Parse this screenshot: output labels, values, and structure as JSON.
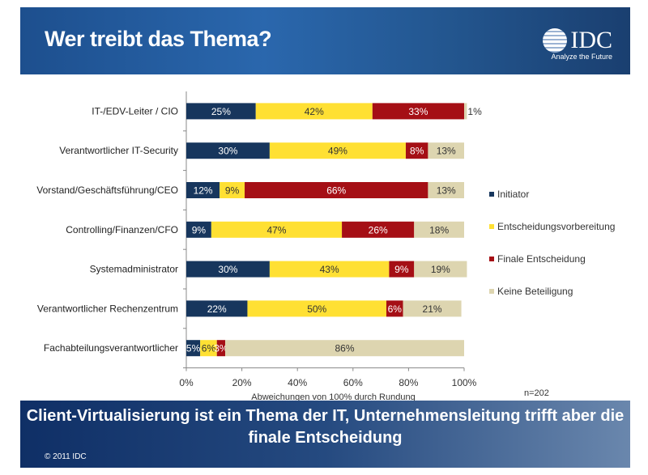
{
  "header": {
    "title": "Wer treibt das Thema?",
    "logo_text": "IDC",
    "logo_tagline": "Analyze the Future"
  },
  "chart_data": {
    "type": "bar",
    "orientation": "horizontal",
    "stacked": true,
    "categories": [
      "IT-/EDV-Leiter / CIO",
      "Verantwortlicher IT-Security",
      "Vorstand/Geschäftsführung/CEO",
      "Controlling/Finanzen/CFO",
      "Systemadministrator",
      "Verantwortlicher Rechenzentrum",
      "Fachabteilungsverantwortlicher"
    ],
    "series": [
      {
        "name": "Initiator",
        "color": "#17365d",
        "label_color": "#ffffff",
        "values": [
          25,
          30,
          12,
          9,
          30,
          22,
          5
        ]
      },
      {
        "name": "Entscheidungsvorbereitung",
        "color": "#ffe033",
        "label_color": "#333333",
        "values": [
          42,
          49,
          9,
          47,
          43,
          50,
          6
        ]
      },
      {
        "name": "Finale Entscheidung",
        "color": "#a50f15",
        "label_color": "#ffffff",
        "values": [
          33,
          8,
          66,
          26,
          9,
          6,
          3
        ]
      },
      {
        "name": "Keine Beteiligung",
        "color": "#ddd5b0",
        "label_color": "#333333",
        "values": [
          1,
          13,
          13,
          18,
          19,
          21,
          86
        ]
      }
    ],
    "xlim": [
      0,
      100
    ],
    "xticks": [
      "0%",
      "20%",
      "40%",
      "60%",
      "80%",
      "100%"
    ],
    "xlabel": "Abweichungen von 100% durch Rundung",
    "annotation": "n=202",
    "legend_position": "right",
    "grid": false
  },
  "banner": {
    "text": "Client-Virtualisierung ist ein Thema der IT, Unternehmensleitung trifft aber die finale Entscheidung",
    "copyright": "© 2011 IDC"
  }
}
